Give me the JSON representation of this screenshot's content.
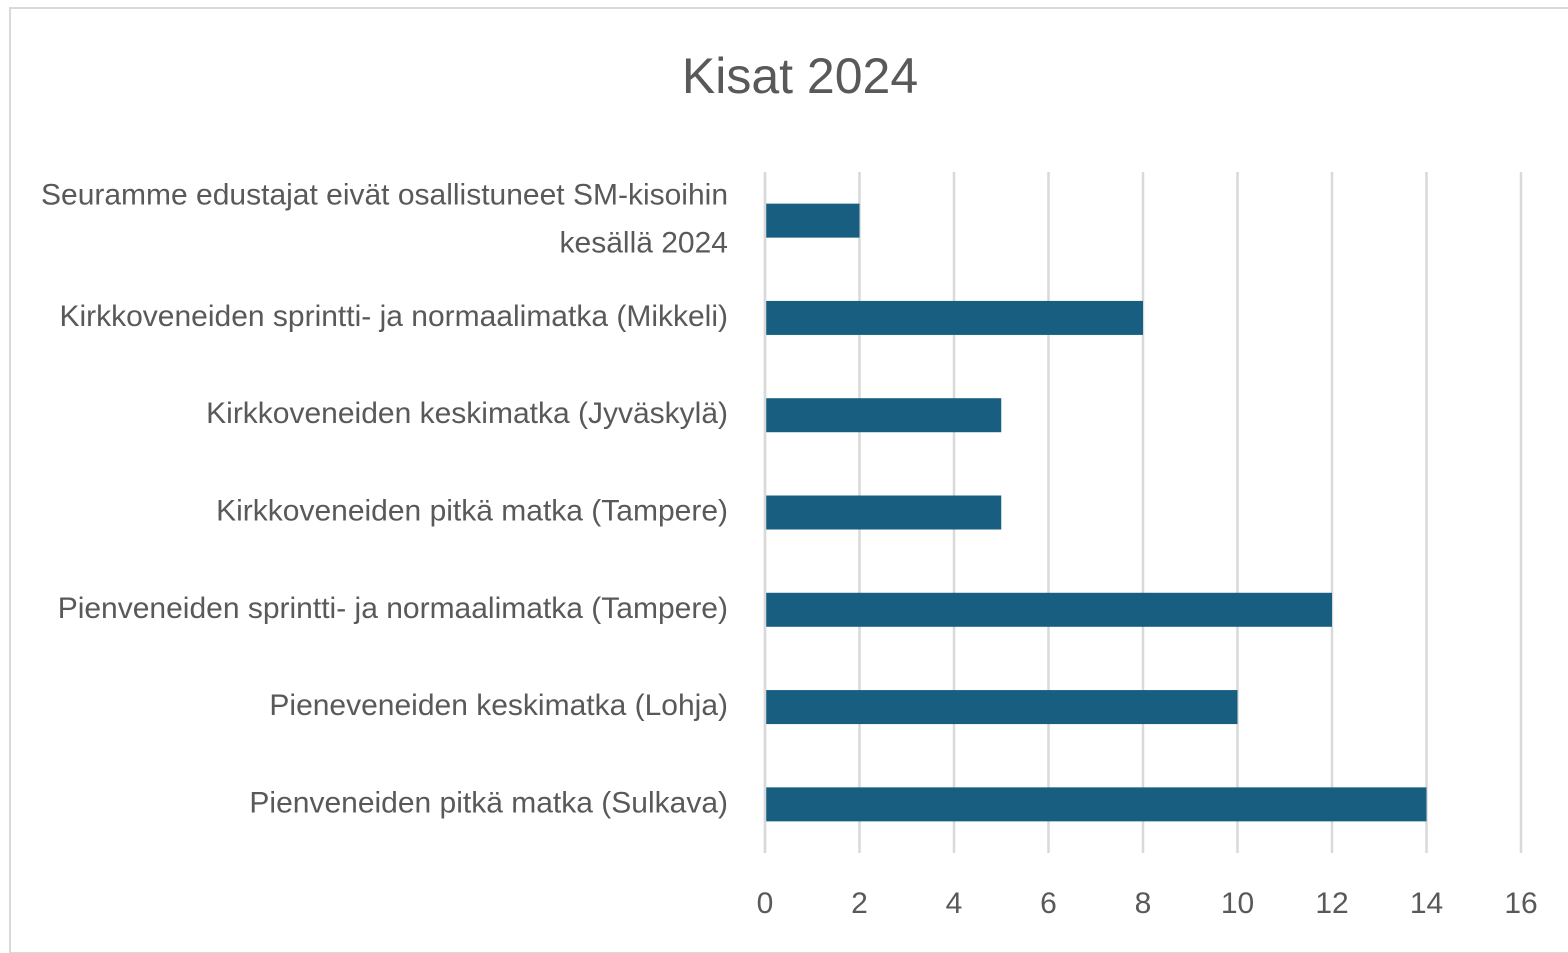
{
  "chart_data": {
    "type": "bar",
    "orientation": "horizontal",
    "title": "Kisat 2024",
    "categories": [
      "Seuramme edustajat eivät osallistuneet SM-kisoihin kesällä 2024",
      "Kirkkoveneiden sprintti- ja normaalimatka (Mikkeli)",
      "Kirkkoveneiden keskimatka (Jyväskylä)",
      "Kirkkoveneiden pitkä matka (Tampere)",
      "Pienveneiden sprintti- ja normaalimatka (Tampere)",
      "Pieneveneiden keskimatka (Lohja)",
      "Pienveneiden pitkä matka (Sulkava)"
    ],
    "values": [
      2,
      8,
      5,
      5,
      12,
      10,
      14
    ],
    "color": "#175e81",
    "xlim": [
      0,
      16
    ],
    "xticks": [
      0,
      2,
      4,
      6,
      8,
      10,
      12,
      14,
      16
    ],
    "grid": true
  }
}
